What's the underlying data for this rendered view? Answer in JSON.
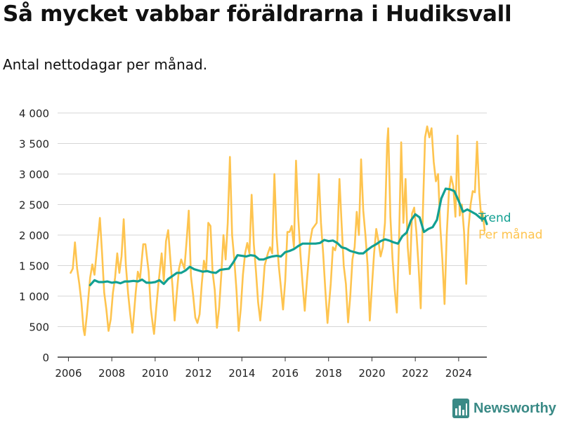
{
  "title": "Så mycket vabbar föräldrarna i Hudiksvall",
  "subtitle": "Antal nettodagar per månad.",
  "brand": {
    "name": "Newsworthy",
    "icon": "bar-chart-logo-icon",
    "color": "#3a8a86"
  },
  "chart_data": {
    "type": "line",
    "x_axis": {
      "ticks": [
        "2006",
        "2008",
        "2010",
        "2012",
        "2014",
        "2016",
        "2018",
        "2020",
        "2022",
        "2024"
      ],
      "range": [
        2005.5,
        2025.3
      ]
    },
    "y_axis": {
      "ticks": [
        "0",
        "500",
        "1 000",
        "1 500",
        "2 000",
        "2 500",
        "3 000",
        "3 500",
        "4 000"
      ],
      "range": [
        0,
        4000
      ]
    },
    "grid": true,
    "legend_placement": "right",
    "series": [
      {
        "name": "Trend",
        "color": "#12a092",
        "points": [
          [
            2007.0,
            1180
          ],
          [
            2007.2,
            1260
          ],
          [
            2007.4,
            1230
          ],
          [
            2007.6,
            1230
          ],
          [
            2007.8,
            1240
          ],
          [
            2008.0,
            1220
          ],
          [
            2008.2,
            1230
          ],
          [
            2008.4,
            1210
          ],
          [
            2008.6,
            1240
          ],
          [
            2008.8,
            1240
          ],
          [
            2009.0,
            1250
          ],
          [
            2009.2,
            1240
          ],
          [
            2009.4,
            1270
          ],
          [
            2009.6,
            1220
          ],
          [
            2009.8,
            1220
          ],
          [
            2010.0,
            1230
          ],
          [
            2010.2,
            1260
          ],
          [
            2010.4,
            1200
          ],
          [
            2010.6,
            1280
          ],
          [
            2010.8,
            1330
          ],
          [
            2011.0,
            1380
          ],
          [
            2011.2,
            1380
          ],
          [
            2011.4,
            1420
          ],
          [
            2011.6,
            1480
          ],
          [
            2011.8,
            1440
          ],
          [
            2012.0,
            1420
          ],
          [
            2012.2,
            1400
          ],
          [
            2012.4,
            1410
          ],
          [
            2012.6,
            1390
          ],
          [
            2012.8,
            1380
          ],
          [
            2013.0,
            1430
          ],
          [
            2013.2,
            1440
          ],
          [
            2013.4,
            1450
          ],
          [
            2013.6,
            1550
          ],
          [
            2013.8,
            1670
          ],
          [
            2014.0,
            1660
          ],
          [
            2014.2,
            1650
          ],
          [
            2014.4,
            1670
          ],
          [
            2014.6,
            1660
          ],
          [
            2014.8,
            1600
          ],
          [
            2015.0,
            1600
          ],
          [
            2015.2,
            1630
          ],
          [
            2015.4,
            1650
          ],
          [
            2015.6,
            1660
          ],
          [
            2015.8,
            1650
          ],
          [
            2016.0,
            1720
          ],
          [
            2016.2,
            1740
          ],
          [
            2016.4,
            1770
          ],
          [
            2016.6,
            1820
          ],
          [
            2016.8,
            1860
          ],
          [
            2017.0,
            1860
          ],
          [
            2017.2,
            1860
          ],
          [
            2017.4,
            1860
          ],
          [
            2017.6,
            1870
          ],
          [
            2017.8,
            1920
          ],
          [
            2018.0,
            1900
          ],
          [
            2018.2,
            1910
          ],
          [
            2018.4,
            1870
          ],
          [
            2018.6,
            1800
          ],
          [
            2018.8,
            1780
          ],
          [
            2019.0,
            1740
          ],
          [
            2019.2,
            1720
          ],
          [
            2019.4,
            1700
          ],
          [
            2019.6,
            1700
          ],
          [
            2019.8,
            1760
          ],
          [
            2020.0,
            1810
          ],
          [
            2020.2,
            1850
          ],
          [
            2020.4,
            1900
          ],
          [
            2020.6,
            1930
          ],
          [
            2020.8,
            1910
          ],
          [
            2021.0,
            1880
          ],
          [
            2021.2,
            1860
          ],
          [
            2021.4,
            1980
          ],
          [
            2021.6,
            2040
          ],
          [
            2021.8,
            2240
          ],
          [
            2022.0,
            2340
          ],
          [
            2022.2,
            2290
          ],
          [
            2022.4,
            2050
          ],
          [
            2022.6,
            2100
          ],
          [
            2022.8,
            2130
          ],
          [
            2023.0,
            2250
          ],
          [
            2023.2,
            2600
          ],
          [
            2023.4,
            2760
          ],
          [
            2023.6,
            2750
          ],
          [
            2023.8,
            2720
          ],
          [
            2024.0,
            2560
          ],
          [
            2024.2,
            2380
          ],
          [
            2024.4,
            2420
          ],
          [
            2024.6,
            2380
          ],
          [
            2024.8,
            2340
          ],
          [
            2025.0,
            2280
          ],
          [
            2025.1,
            2260
          ],
          [
            2025.2,
            2280
          ],
          [
            2025.3,
            2180
          ]
        ]
      },
      {
        "name": "Per månad",
        "color": "#fec44f",
        "points": [
          [
            2006.1,
            1380
          ],
          [
            2006.2,
            1450
          ],
          [
            2006.3,
            1880
          ],
          [
            2006.4,
            1450
          ],
          [
            2006.5,
            1200
          ],
          [
            2006.6,
            900
          ],
          [
            2006.7,
            450
          ],
          [
            2006.75,
            360
          ],
          [
            2006.85,
            700
          ],
          [
            2007.0,
            1300
          ],
          [
            2007.1,
            1520
          ],
          [
            2007.2,
            1350
          ],
          [
            2007.35,
            1900
          ],
          [
            2007.45,
            2280
          ],
          [
            2007.55,
            1700
          ],
          [
            2007.65,
            1060
          ],
          [
            2007.75,
            780
          ],
          [
            2007.85,
            430
          ],
          [
            2007.95,
            620
          ],
          [
            2008.05,
            1050
          ],
          [
            2008.15,
            1300
          ],
          [
            2008.25,
            1700
          ],
          [
            2008.35,
            1380
          ],
          [
            2008.45,
            1650
          ],
          [
            2008.55,
            2260
          ],
          [
            2008.65,
            1500
          ],
          [
            2008.75,
            1050
          ],
          [
            2008.85,
            700
          ],
          [
            2008.95,
            400
          ],
          [
            2009.1,
            1050
          ],
          [
            2009.2,
            1400
          ],
          [
            2009.3,
            1280
          ],
          [
            2009.45,
            1850
          ],
          [
            2009.55,
            1850
          ],
          [
            2009.7,
            1400
          ],
          [
            2009.8,
            800
          ],
          [
            2009.9,
            500
          ],
          [
            2009.95,
            380
          ],
          [
            2010.05,
            800
          ],
          [
            2010.15,
            1200
          ],
          [
            2010.3,
            1700
          ],
          [
            2010.4,
            1250
          ],
          [
            2010.5,
            1900
          ],
          [
            2010.6,
            2080
          ],
          [
            2010.7,
            1600
          ],
          [
            2010.8,
            1150
          ],
          [
            2010.9,
            600
          ],
          [
            2011.0,
            1050
          ],
          [
            2011.1,
            1450
          ],
          [
            2011.2,
            1600
          ],
          [
            2011.35,
            1450
          ],
          [
            2011.45,
            1900
          ],
          [
            2011.55,
            2400
          ],
          [
            2011.65,
            1330
          ],
          [
            2011.75,
            1020
          ],
          [
            2011.85,
            650
          ],
          [
            2011.95,
            560
          ],
          [
            2012.05,
            700
          ],
          [
            2012.15,
            1200
          ],
          [
            2012.25,
            1580
          ],
          [
            2012.35,
            1400
          ],
          [
            2012.45,
            2200
          ],
          [
            2012.55,
            2150
          ],
          [
            2012.65,
            1400
          ],
          [
            2012.75,
            1100
          ],
          [
            2012.85,
            480
          ],
          [
            2012.95,
            800
          ],
          [
            2013.05,
            1350
          ],
          [
            2013.15,
            2000
          ],
          [
            2013.25,
            1600
          ],
          [
            2013.35,
            2200
          ],
          [
            2013.45,
            3280
          ],
          [
            2013.55,
            2000
          ],
          [
            2013.65,
            1600
          ],
          [
            2013.75,
            1100
          ],
          [
            2013.85,
            430
          ],
          [
            2013.95,
            800
          ],
          [
            2014.05,
            1350
          ],
          [
            2014.15,
            1700
          ],
          [
            2014.25,
            1870
          ],
          [
            2014.35,
            1700
          ],
          [
            2014.45,
            2660
          ],
          [
            2014.55,
            1850
          ],
          [
            2014.65,
            1400
          ],
          [
            2014.75,
            900
          ],
          [
            2014.85,
            600
          ],
          [
            2014.95,
            1000
          ],
          [
            2015.05,
            1500
          ],
          [
            2015.2,
            1700
          ],
          [
            2015.3,
            1800
          ],
          [
            2015.4,
            1700
          ],
          [
            2015.5,
            3000
          ],
          [
            2015.6,
            2000
          ],
          [
            2015.7,
            1500
          ],
          [
            2015.8,
            1150
          ],
          [
            2015.9,
            780
          ],
          [
            2016.0,
            1250
          ],
          [
            2016.1,
            2050
          ],
          [
            2016.2,
            2050
          ],
          [
            2016.3,
            2150
          ],
          [
            2016.4,
            1800
          ],
          [
            2016.5,
            3220
          ],
          [
            2016.6,
            2300
          ],
          [
            2016.7,
            1700
          ],
          [
            2016.8,
            1200
          ],
          [
            2016.9,
            760
          ],
          [
            2017.0,
            1250
          ],
          [
            2017.15,
            1900
          ],
          [
            2017.25,
            2100
          ],
          [
            2017.35,
            2150
          ],
          [
            2017.45,
            2200
          ],
          [
            2017.55,
            3000
          ],
          [
            2017.65,
            2200
          ],
          [
            2017.75,
            1700
          ],
          [
            2017.85,
            1100
          ],
          [
            2017.95,
            560
          ],
          [
            2018.1,
            1200
          ],
          [
            2018.2,
            1800
          ],
          [
            2018.3,
            1750
          ],
          [
            2018.4,
            1900
          ],
          [
            2018.5,
            2920
          ],
          [
            2018.6,
            2200
          ],
          [
            2018.7,
            1500
          ],
          [
            2018.8,
            1200
          ],
          [
            2018.9,
            570
          ],
          [
            2019.0,
            1000
          ],
          [
            2019.1,
            1600
          ],
          [
            2019.2,
            1800
          ],
          [
            2019.3,
            2380
          ],
          [
            2019.4,
            2000
          ],
          [
            2019.5,
            3240
          ],
          [
            2019.6,
            2400
          ],
          [
            2019.7,
            2000
          ],
          [
            2019.8,
            1500
          ],
          [
            2019.9,
            600
          ],
          [
            2020.0,
            1150
          ],
          [
            2020.1,
            1700
          ],
          [
            2020.2,
            2100
          ],
          [
            2020.3,
            1900
          ],
          [
            2020.4,
            1650
          ],
          [
            2020.5,
            1800
          ],
          [
            2020.6,
            2200
          ],
          [
            2020.7,
            3500
          ],
          [
            2020.75,
            3750
          ],
          [
            2020.85,
            2300
          ],
          [
            2020.95,
            1600
          ],
          [
            2021.05,
            1100
          ],
          [
            2021.15,
            730
          ],
          [
            2021.25,
            1900
          ],
          [
            2021.35,
            3520
          ],
          [
            2021.45,
            2200
          ],
          [
            2021.55,
            2920
          ],
          [
            2021.65,
            1800
          ],
          [
            2021.75,
            1360
          ],
          [
            2021.85,
            2350
          ],
          [
            2021.95,
            2450
          ],
          [
            2022.05,
            2050
          ],
          [
            2022.15,
            1500
          ],
          [
            2022.25,
            800
          ],
          [
            2022.35,
            2400
          ],
          [
            2022.45,
            3600
          ],
          [
            2022.55,
            3780
          ],
          [
            2022.65,
            3600
          ],
          [
            2022.75,
            3750
          ],
          [
            2022.85,
            3200
          ],
          [
            2022.95,
            2880
          ],
          [
            2023.05,
            3000
          ],
          [
            2023.15,
            2140
          ],
          [
            2023.25,
            1600
          ],
          [
            2023.35,
            870
          ],
          [
            2023.45,
            2000
          ],
          [
            2023.55,
            2700
          ],
          [
            2023.65,
            2960
          ],
          [
            2023.75,
            2800
          ],
          [
            2023.85,
            2300
          ],
          [
            2023.95,
            3630
          ],
          [
            2024.05,
            2320
          ],
          [
            2024.15,
            2500
          ],
          [
            2024.25,
            2050
          ],
          [
            2024.35,
            1200
          ],
          [
            2024.45,
            2100
          ],
          [
            2024.55,
            2500
          ],
          [
            2024.65,
            2720
          ],
          [
            2024.75,
            2700
          ],
          [
            2024.85,
            3530
          ],
          [
            2024.95,
            2700
          ],
          [
            2025.05,
            2250
          ],
          [
            2025.1,
            2380
          ],
          [
            2025.2,
            2080
          ]
        ]
      }
    ]
  }
}
